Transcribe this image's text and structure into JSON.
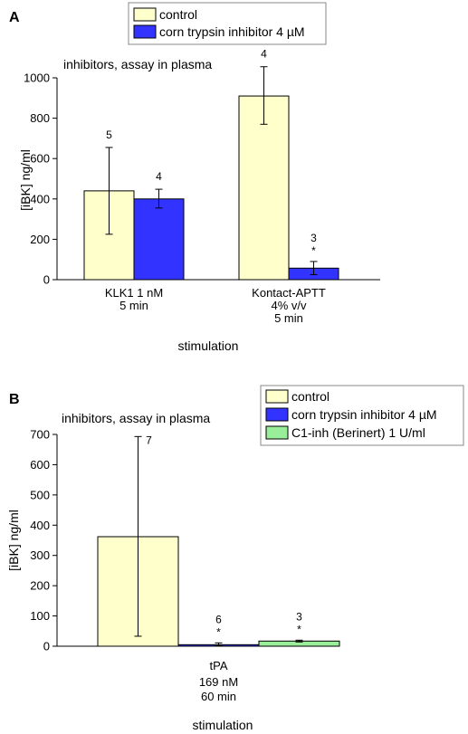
{
  "panels": [
    {
      "letter": "A",
      "note": "inhibitors, assay in plasma",
      "ylabel": "[iBK]  ng/ml",
      "xlabel": "stimulation",
      "legend": [
        "control",
        "corn trypsin inhibitor 4 µM"
      ]
    },
    {
      "letter": "B",
      "note": "inhibitors, assay in plasma",
      "ylabel": "[iBK]  ng/ml",
      "xlabel": "stimulation",
      "legend": [
        "control",
        "corn trypsin inhibitor 4 µM",
        "C1-inh (Berinert) 1 U/ml"
      ]
    }
  ],
  "chart_data": [
    {
      "type": "bar",
      "ylabel": "[iBK]  ng/ml",
      "xlabel": "stimulation",
      "ylim": [
        0,
        1000
      ],
      "yticks": [
        0,
        200,
        400,
        600,
        800,
        1000
      ],
      "categories": [
        [
          "KLK1 1 nM",
          "5 min"
        ],
        [
          "Kontact-APTT",
          "4% v/v",
          "5 min"
        ]
      ],
      "series": [
        {
          "name": "control",
          "color": "#ffffcc",
          "values": [
            440,
            910
          ],
          "err_low": [
            225,
            770
          ],
          "err_high": [
            655,
            1055
          ],
          "n": [
            "5",
            "4"
          ],
          "sig": [
            "",
            ""
          ]
        },
        {
          "name": "corn trypsin inhibitor 4 µM",
          "color": "#3333ff",
          "values": [
            400,
            57
          ],
          "err_low": [
            355,
            25
          ],
          "err_high": [
            448,
            90
          ],
          "n": [
            "4",
            "3"
          ],
          "sig": [
            "",
            "*"
          ]
        }
      ],
      "grid": false,
      "legend_position": "top"
    },
    {
      "type": "bar",
      "ylabel": "[iBK]  ng/ml",
      "xlabel": "stimulation",
      "ylim": [
        0,
        700
      ],
      "yticks": [
        0,
        100,
        200,
        300,
        400,
        500,
        600,
        700
      ],
      "categories": [
        [
          "tPA",
          "169 nM",
          "60 min"
        ]
      ],
      "series": [
        {
          "name": "control",
          "color": "#ffffcc",
          "values": [
            362
          ],
          "err_low": [
            33
          ],
          "err_high": [
            693
          ],
          "n": [
            "7"
          ],
          "sig": [
            ""
          ]
        },
        {
          "name": "corn trypsin inhibitor 4 µM",
          "color": "#3333ff",
          "values": [
            5
          ],
          "err_low": [
            2
          ],
          "err_high": [
            11
          ],
          "n": [
            "6"
          ],
          "sig": [
            "*"
          ]
        },
        {
          "name": "C1-inh (Berinert) 1 U/ml",
          "color": "#99ee99",
          "values": [
            17
          ],
          "err_low": [
            14
          ],
          "err_high": [
            20
          ],
          "n": [
            "3"
          ],
          "sig": [
            "*"
          ]
        }
      ],
      "grid": false,
      "legend_position": "top-right"
    }
  ]
}
